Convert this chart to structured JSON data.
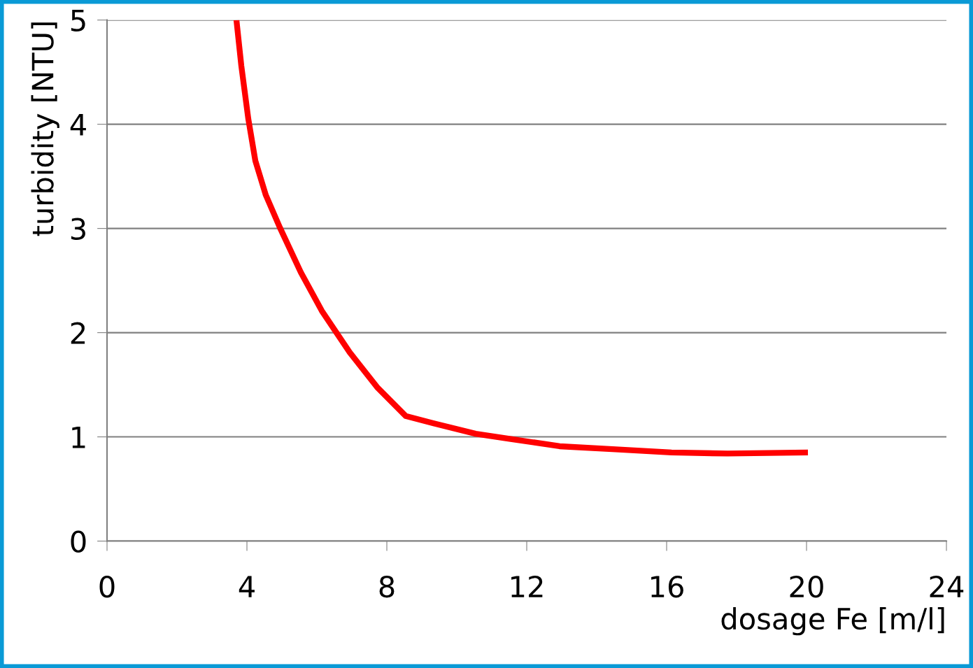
{
  "chart_data": {
    "type": "line",
    "xlabel": "dosage Fe [m/l]",
    "ylabel": "turbidity [NTU]",
    "x": [
      3.7,
      3.84,
      4.04,
      4.24,
      4.54,
      4.94,
      5.54,
      6.14,
      6.94,
      7.74,
      8.54,
      9.34,
      10.54,
      11.54,
      12.94,
      14.54,
      16.14,
      17.74,
      20.04
    ],
    "series": [
      {
        "color": "#ff0000",
        "values": [
          5.0,
          4.56,
          4.05,
          3.65,
          3.32,
          3.01,
          2.58,
          2.21,
          1.81,
          1.47,
          1.2,
          1.13,
          1.03,
          0.98,
          0.91,
          0.88,
          0.85,
          0.84,
          0.85
        ]
      }
    ],
    "xlim": [
      0,
      24
    ],
    "ylim": [
      0,
      5
    ],
    "xticks": [
      0,
      4,
      8,
      12,
      16,
      20,
      24
    ],
    "yticks": [
      0,
      1,
      2,
      3,
      4,
      5
    ],
    "grid": "y",
    "legend": false,
    "marker": "none",
    "line_style": "solid"
  }
}
